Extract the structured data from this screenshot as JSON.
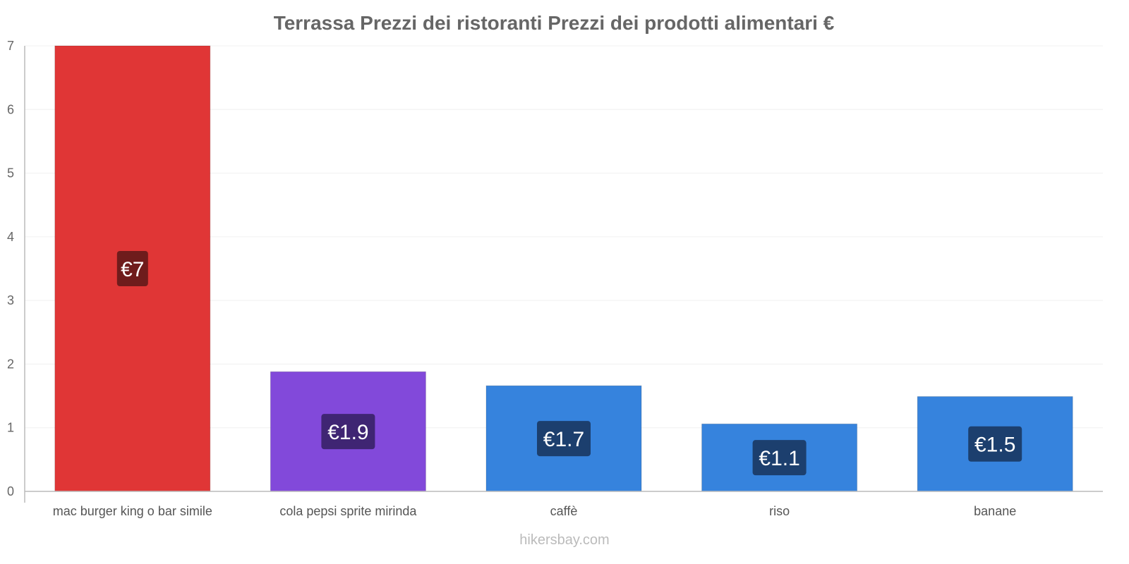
{
  "chart_data": {
    "type": "bar",
    "title": "Terrassa Prezzi dei ristoranti Prezzi dei prodotti alimentari €",
    "categories": [
      "mac burger king o bar simile",
      "cola pepsi sprite mirinda",
      "caffè",
      "riso",
      "banane"
    ],
    "values": [
      7,
      1.88,
      1.66,
      1.06,
      1.49
    ],
    "data_labels": [
      "€7",
      "€1.9",
      "€1.7",
      "€1.1",
      "€1.5"
    ],
    "colors": [
      "#e03636",
      "#8249da",
      "#3683dd",
      "#3683dd",
      "#3683dd"
    ],
    "label_colors": [
      "#6f1c1c",
      "#3f2573",
      "#1c3f6e",
      "#1c3f6e",
      "#1c3f6e"
    ],
    "ylim": [
      0,
      7
    ],
    "yticks": [
      0,
      1,
      2,
      3,
      4,
      5,
      6,
      7
    ],
    "xlabel": "",
    "ylabel": "",
    "grid": true
  },
  "watermark": "hikersbay.com"
}
